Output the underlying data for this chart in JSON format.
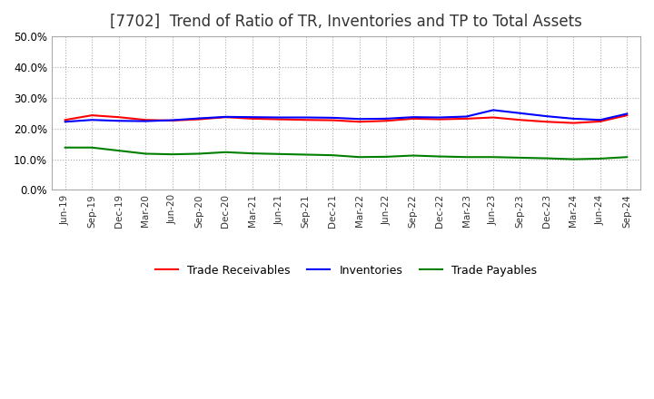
{
  "title": "[7702]  Trend of Ratio of TR, Inventories and TP to Total Assets",
  "x_labels": [
    "Jun-19",
    "Sep-19",
    "Dec-19",
    "Mar-20",
    "Jun-20",
    "Sep-20",
    "Dec-20",
    "Mar-21",
    "Jun-21",
    "Sep-21",
    "Dec-21",
    "Mar-22",
    "Jun-22",
    "Sep-22",
    "Dec-22",
    "Mar-23",
    "Jun-23",
    "Sep-23",
    "Dec-23",
    "Mar-24",
    "Jun-24",
    "Sep-24"
  ],
  "trade_receivables": [
    0.228,
    0.243,
    0.237,
    0.228,
    0.226,
    0.23,
    0.237,
    0.232,
    0.23,
    0.228,
    0.227,
    0.222,
    0.225,
    0.232,
    0.23,
    0.232,
    0.236,
    0.228,
    0.222,
    0.218,
    0.223,
    0.243
  ],
  "inventories": [
    0.222,
    0.228,
    0.225,
    0.224,
    0.227,
    0.233,
    0.238,
    0.237,
    0.236,
    0.236,
    0.235,
    0.231,
    0.232,
    0.237,
    0.236,
    0.239,
    0.26,
    0.25,
    0.24,
    0.232,
    0.228,
    0.248
  ],
  "trade_payables": [
    0.138,
    0.138,
    0.128,
    0.118,
    0.116,
    0.118,
    0.123,
    0.119,
    0.117,
    0.115,
    0.113,
    0.107,
    0.108,
    0.112,
    0.109,
    0.107,
    0.107,
    0.105,
    0.103,
    0.1,
    0.102,
    0.107
  ],
  "tr_color": "#ff0000",
  "inv_color": "#0000ff",
  "tp_color": "#008000",
  "ylim": [
    0.0,
    0.5
  ],
  "yticks": [
    0.0,
    0.1,
    0.2,
    0.3,
    0.4,
    0.5
  ],
  "background_color": "#ffffff",
  "grid_color": "#aaaaaa",
  "title_fontsize": 12,
  "legend_labels": [
    "Trade Receivables",
    "Inventories",
    "Trade Payables"
  ]
}
